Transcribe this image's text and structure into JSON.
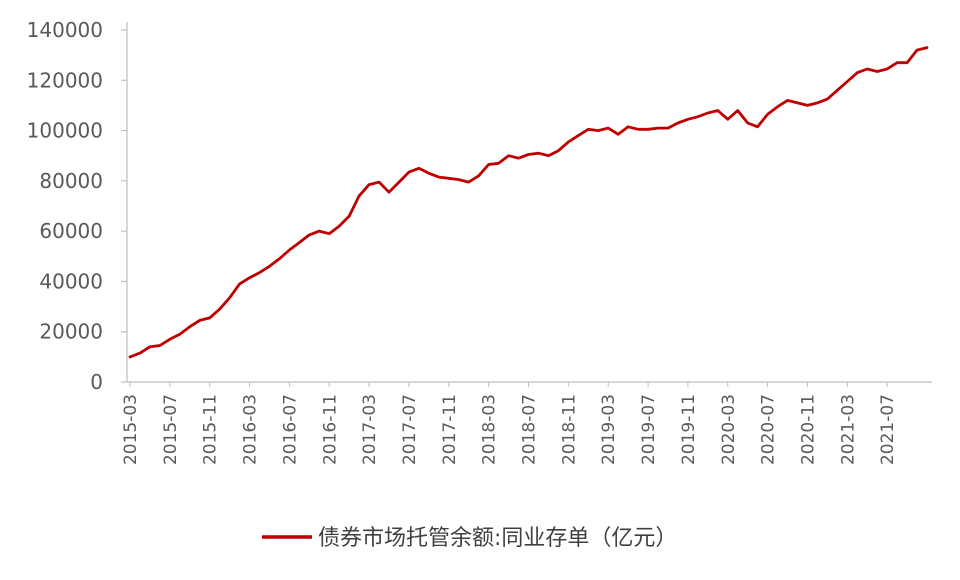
{
  "chart_data": {
    "type": "line",
    "title": "",
    "xlabel": "",
    "ylabel": "",
    "ylim": [
      0,
      140000
    ],
    "yticks": [
      0,
      20000,
      40000,
      60000,
      80000,
      100000,
      120000,
      140000
    ],
    "ytick_labels": [
      "0",
      "20000",
      "40000",
      "60000",
      "80000",
      "100000",
      "120000",
      "140000"
    ],
    "xtick_labels": [
      "2015-03",
      "2015-07",
      "2015-11",
      "2016-03",
      "2016-07",
      "2016-11",
      "2017-03",
      "2017-07",
      "2017-11",
      "2018-03",
      "2018-07",
      "2018-11",
      "2019-03",
      "2019-07",
      "2019-11",
      "2020-03",
      "2020-07",
      "2020-11",
      "2021-03",
      "2021-07"
    ],
    "grid": false,
    "legend_position": "bottom",
    "colors": {
      "series": "#c00000",
      "axis": "#bfbfbf",
      "text": "#595959"
    },
    "x": [
      "2015-03",
      "2015-04",
      "2015-05",
      "2015-06",
      "2015-07",
      "2015-08",
      "2015-09",
      "2015-10",
      "2015-11",
      "2015-12",
      "2016-01",
      "2016-02",
      "2016-03",
      "2016-04",
      "2016-05",
      "2016-06",
      "2016-07",
      "2016-08",
      "2016-09",
      "2016-10",
      "2016-11",
      "2016-12",
      "2017-01",
      "2017-02",
      "2017-03",
      "2017-04",
      "2017-05",
      "2017-06",
      "2017-07",
      "2017-08",
      "2017-09",
      "2017-10",
      "2017-11",
      "2017-12",
      "2018-01",
      "2018-02",
      "2018-03",
      "2018-04",
      "2018-05",
      "2018-06",
      "2018-07",
      "2018-08",
      "2018-09",
      "2018-10",
      "2018-11",
      "2018-12",
      "2019-01",
      "2019-02",
      "2019-03",
      "2019-04",
      "2019-05",
      "2019-06",
      "2019-07",
      "2019-08",
      "2019-09",
      "2019-10",
      "2019-11",
      "2019-12",
      "2020-01",
      "2020-02",
      "2020-03",
      "2020-04",
      "2020-05",
      "2020-06",
      "2020-07",
      "2020-08",
      "2020-09",
      "2020-10",
      "2020-11",
      "2020-12",
      "2021-01",
      "2021-02",
      "2021-03",
      "2021-04",
      "2021-05",
      "2021-06",
      "2021-07",
      "2021-08",
      "2021-09",
      "2021-10",
      "2021-11"
    ],
    "series": [
      {
        "name": "债券市场托管余额:同业存单（亿元）",
        "values": [
          10000,
          11500,
          14000,
          14500,
          17000,
          19000,
          22000,
          24500,
          25500,
          29000,
          33500,
          39000,
          41500,
          43500,
          46000,
          49000,
          52500,
          55500,
          58500,
          60000,
          59000,
          62000,
          66000,
          74000,
          78500,
          79500,
          75500,
          79500,
          83500,
          85000,
          83000,
          81500,
          81000,
          80500,
          79500,
          82000,
          86500,
          87000,
          90000,
          89000,
          90500,
          91000,
          90000,
          92000,
          95500,
          98000,
          100500,
          100000,
          101000,
          98500,
          101500,
          100500,
          100500,
          101000,
          101000,
          103000,
          104500,
          105500,
          107000,
          108000,
          104500,
          108000,
          103000,
          101500,
          106500,
          109500,
          112000,
          111000,
          110000,
          111000,
          112500,
          116000,
          119500,
          123000,
          124500,
          123500,
          124500,
          127000,
          127000,
          132000,
          133000
        ]
      }
    ]
  }
}
